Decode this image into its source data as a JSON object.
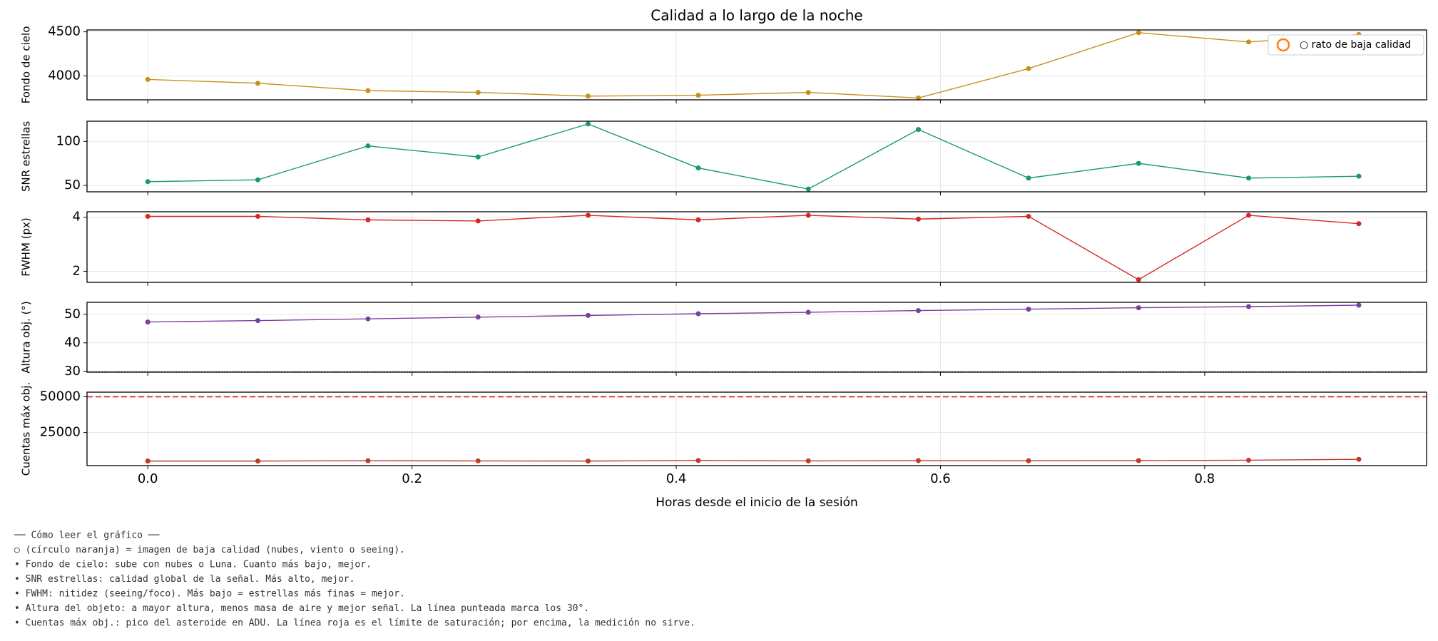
{
  "figure": {
    "title": "Calidad a lo largo de la noche"
  },
  "chart_data": [
    {
      "type": "line",
      "ylabel": "Fondo de cielo",
      "color": "#c9901a",
      "grid": true,
      "x": [
        0,
        0.0833,
        0.1667,
        0.25,
        0.3333,
        0.4167,
        0.5,
        0.5833,
        0.6667,
        0.75,
        0.8333,
        0.9167
      ],
      "values": [
        3960,
        3917,
        3833,
        3813,
        3771,
        3781,
        3813,
        3750,
        4083,
        4490,
        4385,
        4469
      ],
      "xlim": [
        -0.046,
        0.968
      ],
      "xticks": [
        0,
        0.2,
        0.4,
        0.6,
        0.8
      ],
      "ylim": [
        3729,
        4521
      ],
      "yticks": [
        4000,
        4500
      ],
      "legend": {
        "loc": "upper right",
        "entries": [
          {
            "name": "○ rato de baja calidad",
            "marker": "circle",
            "color": "#ff7f0e"
          }
        ]
      }
    },
    {
      "type": "line",
      "ylabel": "SNR estrellas",
      "color": "#1a9a6c",
      "grid": true,
      "x": [
        0,
        0.0833,
        0.1667,
        0.25,
        0.3333,
        0.4167,
        0.5,
        0.5833,
        0.6667,
        0.75,
        0.8333,
        0.9167
      ],
      "values": [
        54.2,
        56.3,
        94.8,
        82.3,
        119.8,
        69.8,
        45.8,
        113.5,
        58.3,
        75,
        58.3,
        60.4
      ],
      "xlim": [
        -0.046,
        0.968
      ],
      "xticks": [
        0,
        0.2,
        0.4,
        0.6,
        0.8
      ],
      "ylim": [
        42.7,
        122.9
      ],
      "yticks": [
        50,
        100
      ]
    },
    {
      "type": "line",
      "ylabel": "FWHM (px)",
      "color": "#d62728",
      "grid": true,
      "x": [
        0,
        0.0833,
        0.1667,
        0.25,
        0.3333,
        0.4167,
        0.5,
        0.5833,
        0.6667,
        0.75,
        0.8333,
        0.9167
      ],
      "values": [
        4.03,
        4.03,
        3.9,
        3.86,
        4.07,
        3.9,
        4.07,
        3.93,
        4.03,
        1.69,
        4.07,
        3.76
      ],
      "xlim": [
        -0.046,
        0.968
      ],
      "xticks": [
        0,
        0.2,
        0.4,
        0.6,
        0.8
      ],
      "ylim": [
        1.59,
        4.2
      ],
      "yticks": [
        2,
        4
      ]
    },
    {
      "type": "line",
      "ylabel": "Altura obj. (°)",
      "color": "#7b3fa0",
      "grid": true,
      "x": [
        0,
        0.0833,
        0.1667,
        0.25,
        0.3333,
        0.4167,
        0.5,
        0.5833,
        0.6667,
        0.75,
        0.8333,
        0.9167
      ],
      "values": [
        47.3,
        47.8,
        48.4,
        49.0,
        49.6,
        50.2,
        50.7,
        51.3,
        51.8,
        52.3,
        52.7,
        53.2
      ],
      "xlim": [
        -0.046,
        0.968
      ],
      "xticks": [
        0,
        0.2,
        0.4,
        0.6,
        0.8
      ],
      "ylim": [
        29.7,
        54.2
      ],
      "yticks": [
        30,
        40,
        50
      ],
      "hline": {
        "value": 30,
        "style": "dotted",
        "color": "#888888"
      }
    },
    {
      "type": "line",
      "ylabel": "Cuentas máx obj.",
      "color": "#c0392b",
      "grid": true,
      "x": [
        0,
        0.0833,
        0.1667,
        0.25,
        0.3333,
        0.4167,
        0.5,
        0.5833,
        0.6667,
        0.75,
        0.8333,
        0.9167
      ],
      "values": [
        5100,
        5100,
        5300,
        5200,
        5100,
        5500,
        5200,
        5400,
        5300,
        5400,
        5700,
        6300
      ],
      "xlim": [
        -0.046,
        0.968
      ],
      "xticks": [
        {
          "value": 0,
          "label": "0.0"
        },
        0.2,
        0.4,
        0.6,
        0.8
      ],
      "ylim": [
        1923,
        53205
      ],
      "yticks": [
        25000,
        50000
      ],
      "xlabel": "Horas desde el inicio de la sesión",
      "hline": {
        "value": 50000,
        "style": "dashed",
        "color": "#e04040"
      }
    }
  ],
  "notes": [
    "── Cómo leer el gráfico ──",
    "○ (círculo naranja) = imagen de baja calidad (nubes, viento o seeing).",
    "• Fondo de cielo: sube con nubes o Luna. Cuanto más bajo, mejor.",
    "• SNR estrellas: calidad global de la señal. Más alto, mejor.",
    "• FWHM: nitidez (seeing/foco). Más bajo = estrellas más finas = mejor.",
    "• Altura del objeto: a mayor altura, menos masa de aire y mejor señal. La línea punteada marca los 30°.",
    "• Cuentas máx obj.: pico del asteroide en ADU. La línea roja es el límite de saturación; por encima, la medición no sirve."
  ]
}
